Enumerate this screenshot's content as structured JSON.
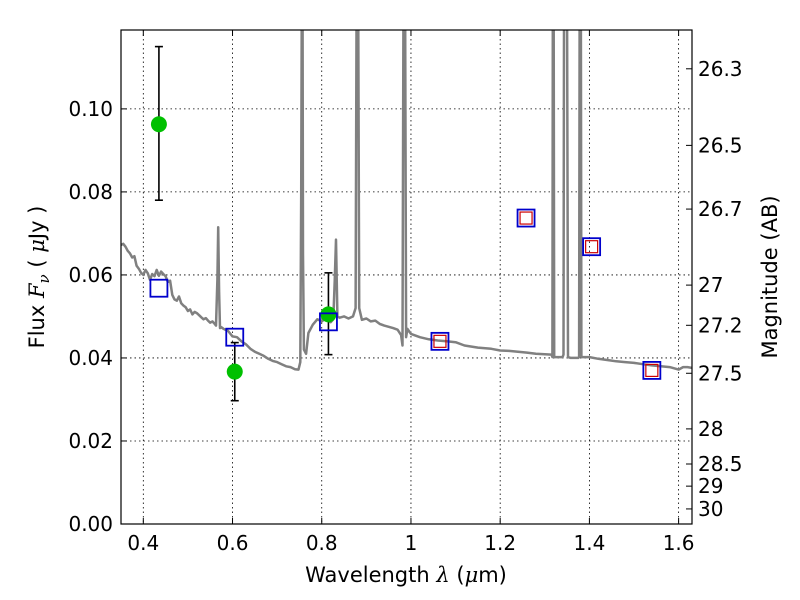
{
  "chart_data": {
    "type": "scatter",
    "xlabel": "Wavelength",
    "xlabel_symbol": "λ",
    "xlabel_unit_open": " (",
    "xlabel_unit_mu": "μ",
    "xlabel_unit_rest": "m)",
    "ylabel": "Flux",
    "ylabel_symbol": "F",
    "ylabel_subscript": "ν",
    "ylabel_unit_open": " ( ",
    "ylabel_unit_mu": "μ",
    "ylabel_unit_rest": "Jy )",
    "y2label": "Magnitude (AB)",
    "xlim": [
      0.35,
      1.63
    ],
    "ylim": [
      0.0,
      0.119
    ],
    "grid": true,
    "x_ticks": [
      {
        "value": 0.4,
        "label": "0.4"
      },
      {
        "value": 0.6,
        "label": "0.6"
      },
      {
        "value": 0.8,
        "label": "0.8"
      },
      {
        "value": 1.0,
        "label": "1"
      },
      {
        "value": 1.2,
        "label": "1.2"
      },
      {
        "value": 1.4,
        "label": "1.4"
      },
      {
        "value": 1.6,
        "label": "1.6"
      }
    ],
    "y_ticks": [
      {
        "value": 0.0,
        "label": "0.00"
      },
      {
        "value": 0.02,
        "label": "0.02"
      },
      {
        "value": 0.04,
        "label": "0.04"
      },
      {
        "value": 0.06,
        "label": "0.06"
      },
      {
        "value": 0.08,
        "label": "0.08"
      },
      {
        "value": 0.1,
        "label": "0.10"
      }
    ],
    "magnitude_ticks": [
      {
        "value": 26.3,
        "label": "26.3"
      },
      {
        "value": 26.5,
        "label": "26.5"
      },
      {
        "value": 26.7,
        "label": "26.7"
      },
      {
        "value": 27.0,
        "label": "27"
      },
      {
        "value": 27.2,
        "label": "27.2"
      },
      {
        "value": 27.5,
        "label": "27.5"
      },
      {
        "value": 28.0,
        "label": "28"
      },
      {
        "value": 28.5,
        "label": "28.5"
      },
      {
        "value": 29.0,
        "label": "29"
      },
      {
        "value": 30.0,
        "label": "30"
      }
    ],
    "series": [
      {
        "kind": "model_spectrum",
        "color": "#808080",
        "points": [
          [
            0.35,
            0.0672
          ],
          [
            0.355,
            0.0675
          ],
          [
            0.36,
            0.0668
          ],
          [
            0.365,
            0.0658
          ],
          [
            0.37,
            0.0652
          ],
          [
            0.375,
            0.0642
          ],
          [
            0.38,
            0.0645
          ],
          [
            0.385,
            0.0622
          ],
          [
            0.39,
            0.0615
          ],
          [
            0.395,
            0.0605
          ],
          [
            0.4,
            0.06
          ],
          [
            0.405,
            0.0612
          ],
          [
            0.41,
            0.0604
          ],
          [
            0.415,
            0.0588
          ],
          [
            0.42,
            0.0602
          ],
          [
            0.425,
            0.0597
          ],
          [
            0.43,
            0.0612
          ],
          [
            0.435,
            0.0598
          ],
          [
            0.44,
            0.0608
          ],
          [
            0.445,
            0.0602
          ],
          [
            0.45,
            0.0597
          ],
          [
            0.455,
            0.0583
          ],
          [
            0.46,
            0.0586
          ],
          [
            0.465,
            0.0552
          ],
          [
            0.47,
            0.0541
          ],
          [
            0.475,
            0.0538
          ],
          [
            0.48,
            0.0548
          ],
          [
            0.485,
            0.0532
          ],
          [
            0.49,
            0.0526
          ],
          [
            0.495,
            0.0522
          ],
          [
            0.5,
            0.0513
          ],
          [
            0.505,
            0.0517
          ],
          [
            0.51,
            0.0505
          ],
          [
            0.515,
            0.0511
          ],
          [
            0.52,
            0.0508
          ],
          [
            0.525,
            0.0503
          ],
          [
            0.53,
            0.0498
          ],
          [
            0.535,
            0.0493
          ],
          [
            0.54,
            0.0496
          ],
          [
            0.545,
            0.049
          ],
          [
            0.55,
            0.0485
          ],
          [
            0.555,
            0.0488
          ],
          [
            0.56,
            0.0482
          ],
          [
            0.563,
            0.0478
          ],
          [
            0.566,
            0.059
          ],
          [
            0.568,
            0.0715
          ],
          [
            0.57,
            0.056
          ],
          [
            0.572,
            0.0472
          ],
          [
            0.575,
            0.0474
          ],
          [
            0.58,
            0.047
          ],
          [
            0.59,
            0.0465
          ],
          [
            0.6,
            0.0452
          ],
          [
            0.61,
            0.045
          ],
          [
            0.62,
            0.044
          ],
          [
            0.63,
            0.0433
          ],
          [
            0.64,
            0.0422
          ],
          [
            0.65,
            0.0415
          ],
          [
            0.66,
            0.041
          ],
          [
            0.67,
            0.0405
          ],
          [
            0.68,
            0.0398
          ],
          [
            0.69,
            0.0393
          ],
          [
            0.7,
            0.039
          ],
          [
            0.71,
            0.0385
          ],
          [
            0.72,
            0.038
          ],
          [
            0.73,
            0.0378
          ],
          [
            0.74,
            0.0373
          ],
          [
            0.748,
            0.0372
          ],
          [
            0.752,
            0.039
          ],
          [
            0.754,
            0.08
          ],
          [
            0.755,
            0.12
          ],
          [
            0.757,
            0.12
          ],
          [
            0.758,
            0.065
          ],
          [
            0.76,
            0.042
          ],
          [
            0.765,
            0.041
          ],
          [
            0.77,
            0.046
          ],
          [
            0.78,
            0.048
          ],
          [
            0.79,
            0.0493
          ],
          [
            0.8,
            0.0488
          ],
          [
            0.81,
            0.0496
          ],
          [
            0.82,
            0.0486
          ],
          [
            0.826,
            0.0493
          ],
          [
            0.829,
            0.0585
          ],
          [
            0.832,
            0.0685
          ],
          [
            0.835,
            0.05
          ],
          [
            0.84,
            0.0497
          ],
          [
            0.85,
            0.05
          ],
          [
            0.86,
            0.0495
          ],
          [
            0.87,
            0.05
          ],
          [
            0.876,
            0.052
          ],
          [
            0.878,
            0.12
          ],
          [
            0.882,
            0.12
          ],
          [
            0.884,
            0.052
          ],
          [
            0.89,
            0.0492
          ],
          [
            0.9,
            0.0495
          ],
          [
            0.91,
            0.0488
          ],
          [
            0.92,
            0.049
          ],
          [
            0.93,
            0.0482
          ],
          [
            0.94,
            0.0478
          ],
          [
            0.95,
            0.0475
          ],
          [
            0.96,
            0.0472
          ],
          [
            0.97,
            0.0468
          ],
          [
            0.978,
            0.0455
          ],
          [
            0.981,
            0.043
          ],
          [
            0.983,
            0.12
          ],
          [
            0.987,
            0.12
          ],
          [
            0.989,
            0.045
          ],
          [
            0.992,
            0.047
          ],
          [
            1.0,
            0.0458
          ],
          [
            1.02,
            0.045
          ],
          [
            1.04,
            0.0445
          ],
          [
            1.06,
            0.0442
          ],
          [
            1.08,
            0.044
          ],
          [
            1.1,
            0.0438
          ],
          [
            1.12,
            0.043
          ],
          [
            1.15,
            0.0425
          ],
          [
            1.18,
            0.0422
          ],
          [
            1.2,
            0.0418
          ],
          [
            1.22,
            0.0417
          ],
          [
            1.24,
            0.0415
          ],
          [
            1.26,
            0.0413
          ],
          [
            1.28,
            0.041
          ],
          [
            1.3,
            0.0409
          ],
          [
            1.315,
            0.0408
          ],
          [
            1.317,
            0.0402
          ],
          [
            1.318,
            0.12
          ],
          [
            1.32,
            0.12
          ],
          [
            1.321,
            0.0402
          ],
          [
            1.34,
            0.0402
          ],
          [
            1.342,
            0.0408
          ],
          [
            1.343,
            0.12
          ],
          [
            1.35,
            0.12
          ],
          [
            1.352,
            0.0402
          ],
          [
            1.358,
            0.04
          ],
          [
            1.375,
            0.04
          ],
          [
            1.377,
            0.0402
          ],
          [
            1.378,
            0.12
          ],
          [
            1.381,
            0.12
          ],
          [
            1.382,
            0.0402
          ],
          [
            1.4,
            0.0402
          ],
          [
            1.42,
            0.0398
          ],
          [
            1.44,
            0.0395
          ],
          [
            1.46,
            0.0392
          ],
          [
            1.48,
            0.039
          ],
          [
            1.5,
            0.0388
          ],
          [
            1.52,
            0.0385
          ],
          [
            1.54,
            0.0382
          ],
          [
            1.56,
            0.038
          ],
          [
            1.58,
            0.0378
          ],
          [
            1.6,
            0.0372
          ],
          [
            1.61,
            0.0378
          ],
          [
            1.62,
            0.0378
          ],
          [
            1.63,
            0.0376
          ]
        ]
      },
      {
        "kind": "observed",
        "marker": "circle",
        "color": "#00c000",
        "points": [
          {
            "x": 0.435,
            "y": 0.0963,
            "yerr": [
              0.0183,
              0.0187
            ]
          },
          {
            "x": 0.605,
            "y": 0.0367,
            "yerr": [
              0.007,
              0.007
            ]
          },
          {
            "x": 0.815,
            "y": 0.0505,
            "yerr": [
              0.0097,
              0.01
            ]
          }
        ]
      },
      {
        "kind": "model_photometry",
        "marker": "square",
        "color": "#0000cc",
        "points": [
          {
            "x": 0.435,
            "y": 0.0568
          },
          {
            "x": 0.605,
            "y": 0.045
          },
          {
            "x": 0.815,
            "y": 0.0487
          },
          {
            "x": 1.065,
            "y": 0.044
          },
          {
            "x": 1.258,
            "y": 0.0737
          },
          {
            "x": 1.405,
            "y": 0.0668
          },
          {
            "x": 1.54,
            "y": 0.037
          }
        ]
      },
      {
        "kind": "model_photometry_inner",
        "marker": "square",
        "color": "#cc0000",
        "points": [
          {
            "x": 1.065,
            "y": 0.044
          },
          {
            "x": 1.258,
            "y": 0.0737
          },
          {
            "x": 1.405,
            "y": 0.0668
          },
          {
            "x": 1.54,
            "y": 0.037
          }
        ]
      }
    ]
  }
}
